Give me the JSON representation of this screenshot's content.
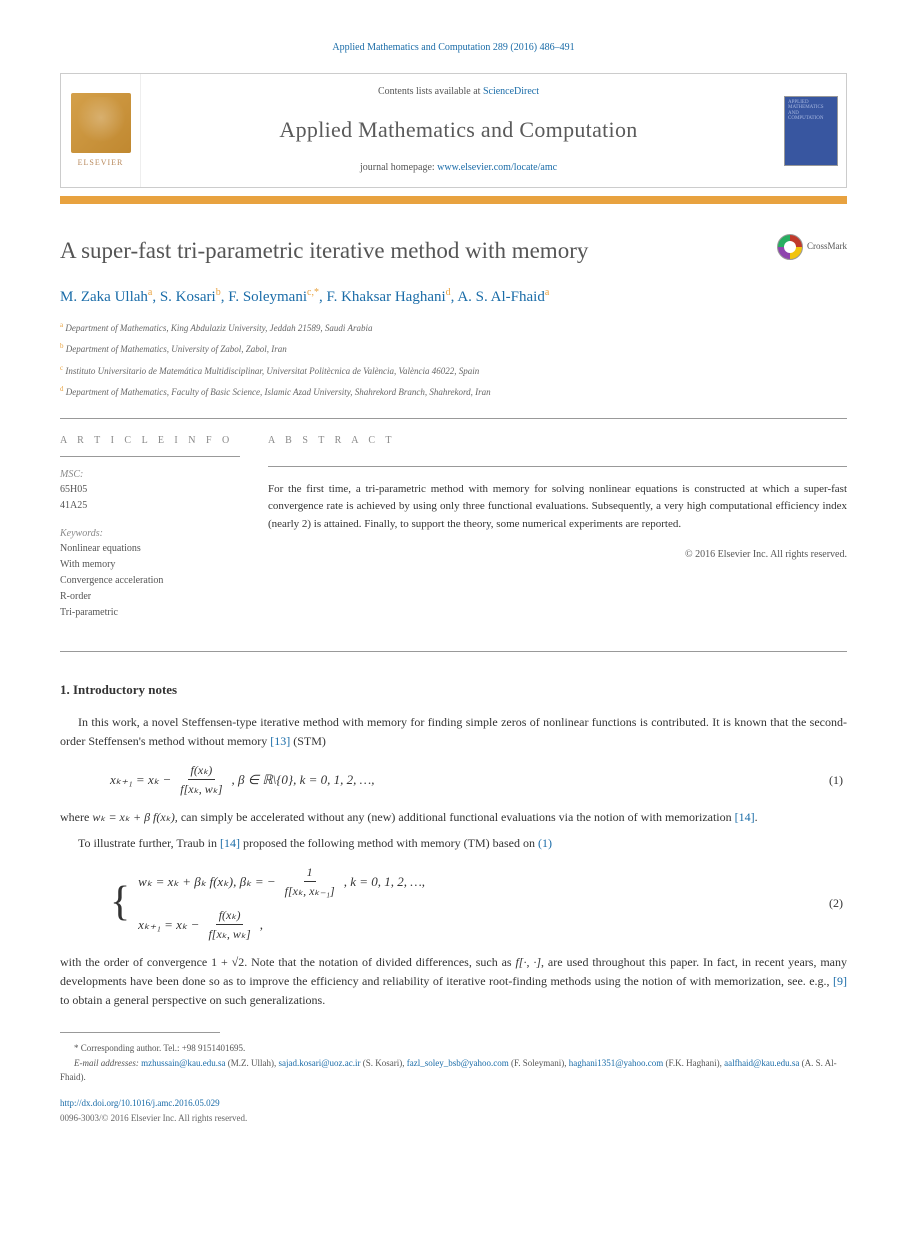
{
  "citation": "Applied Mathematics and Computation 289 (2016) 486–491",
  "header": {
    "contents_prefix": "Contents lists available at ",
    "contents_link": "ScienceDirect",
    "journal_title": "Applied Mathematics and Computation",
    "homepage_prefix": "journal homepage: ",
    "homepage_link": "www.elsevier.com/locate/amc",
    "elsevier_label": "ELSEVIER",
    "cover_text": "APPLIED MATHEMATICS AND COMPUTATION"
  },
  "crossmark_label": "CrossMark",
  "article_title": "A super-fast tri-parametric iterative method with memory",
  "authors_html": "M. Zaka Ullah<span class='sup'>a</span>, S. Kosari<span class='sup'>b</span>, F. Soleymani<span class='sup'>c,*</span>, F. Khaksar Haghani<span class='sup'>d</span>, A. S. Al-Fhaid<span class='sup'>a</span>",
  "affiliations": [
    {
      "sup": "a",
      "text": "Department of Mathematics, King Abdulaziz University, Jeddah 21589, Saudi Arabia"
    },
    {
      "sup": "b",
      "text": "Department of Mathematics, University of Zabol, Zabol, Iran"
    },
    {
      "sup": "c",
      "text": "Instituto Universitario de Matemática Multidisciplinar, Universitat Politècnica de València, València 46022, Spain"
    },
    {
      "sup": "d",
      "text": "Department of Mathematics, Faculty of Basic Science, Islamic Azad University, Shahrekord Branch, Shahrekord, Iran"
    }
  ],
  "info": {
    "label": "A R T I C L E   I N F O",
    "msc_label": "MSC:",
    "msc": [
      "65H05",
      "41A25"
    ],
    "keywords_label": "Keywords:",
    "keywords": [
      "Nonlinear equations",
      "With memory",
      "Convergence acceleration",
      "R-order",
      "Tri-parametric"
    ]
  },
  "abstract": {
    "label": "A B S T R A C T",
    "text": "For the first time, a tri-parametric method with memory for solving nonlinear equations is constructed at which a super-fast convergence rate is achieved by using only three functional evaluations. Subsequently, a very high computational efficiency index (nearly 2) is attained. Finally, to support the theory, some numerical experiments are reported.",
    "copyright": "© 2016 Elsevier Inc. All rights reserved."
  },
  "section1": {
    "heading": "1. Introductory notes",
    "p1_a": "In this work, a novel Steffensen-type iterative method with memory for finding simple zeros of nonlinear functions is contributed. It is known that the second-order Steffensen's method without memory ",
    "p1_ref": "[13]",
    "p1_b": " (STM)",
    "p2_a": "where ",
    "p2_wk": "wₖ = xₖ + β f(xₖ),",
    "p2_b": " can simply be accelerated without any (new) additional functional evaluations via the notion of with memorization ",
    "p2_ref": "[14]",
    "p2_c": ".",
    "p3_a": "To illustrate further, Traub in ",
    "p3_ref": "[14]",
    "p3_b": " proposed the following method with memory (TM) based on ",
    "p3_ref2": "(1)",
    "p4_a": "with the order of convergence 1 + √2. Note that the notation of divided differences, such as ",
    "p4_fn": "f[·, ·]",
    "p4_b": ", are used throughout this paper. In fact, in recent years, many developments have been done so as to improve the efficiency and reliability of iterative root-finding methods using the notion of with memorization, see. e.g., ",
    "p4_ref": "[9]",
    "p4_c": " to obtain a general perspective on such generalizations."
  },
  "eq1": {
    "lhs": "xₖ₊₁ = xₖ −",
    "num": "f(xₖ)",
    "den": "f[xₖ, wₖ]",
    "cond": ",   β ∈ ℝ\\{0},   k = 0, 1, 2, …,",
    "num_label": "(1)"
  },
  "eq2": {
    "line1_a": "wₖ = xₖ + βₖ f(xₖ),   βₖ = −",
    "line1_num": "1",
    "line1_den": "f[xₖ, xₖ₋₁]",
    "line1_tail": ",   k = 0, 1, 2, …,",
    "line2_a": "xₖ₊₁ = xₖ −",
    "line2_num": "f(xₖ)",
    "line2_den": "f[xₖ, wₖ]",
    "line2_tail": ",",
    "num_label": "(2)"
  },
  "footnotes": {
    "corr_label": "* Corresponding author. Tel.: +98 9151401695.",
    "email_label": "E-mail addresses: ",
    "emails": [
      {
        "addr": "mzhussain@kau.edu.sa",
        "name": "(M.Z. Ullah)"
      },
      {
        "addr": "sajad.kosari@uoz.ac.ir",
        "name": "(S. Kosari)"
      },
      {
        "addr": "fazl_soley_bsb@yahoo.com",
        "name": "(F. Soleymani)"
      },
      {
        "addr": "haghani1351@yahoo.com",
        "name": "(F.K. Haghani)"
      },
      {
        "addr": "aalfhaid@kau.edu.sa",
        "name": "(A. S. Al-Fhaid)"
      }
    ]
  },
  "doi": "http://dx.doi.org/10.1016/j.amc.2016.05.029",
  "rights": "0096-3003/© 2016 Elsevier Inc. All rights reserved."
}
